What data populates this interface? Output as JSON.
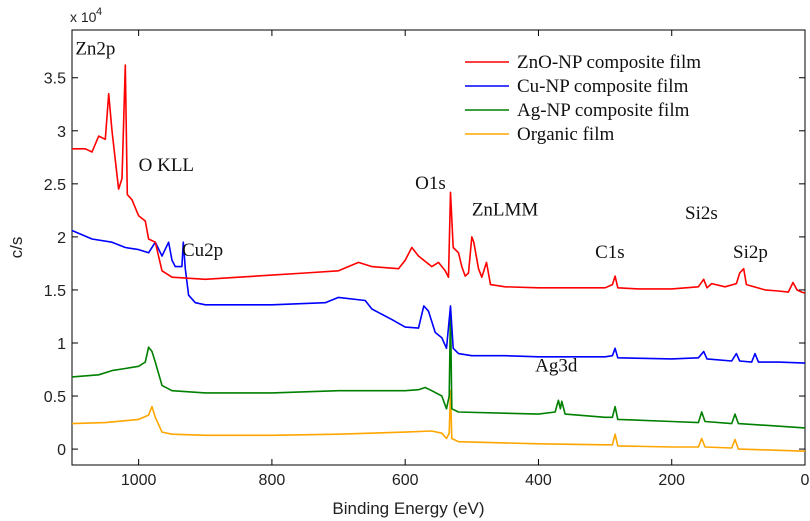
{
  "chart_data": {
    "type": "line",
    "title": "",
    "xlabel": "Binding Energy (eV)",
    "ylabel": "c/s",
    "y_scale_label": "x 10",
    "y_scale_exponent": "4",
    "xlim": [
      1100,
      0
    ],
    "ylim": [
      -0.15,
      3.95
    ],
    "x_reversed": true,
    "grid": false,
    "legend_position": "top-right",
    "x_ticks": [
      1000,
      800,
      600,
      400,
      200,
      0
    ],
    "y_ticks": [
      0,
      0.5,
      1,
      1.5,
      2,
      2.5,
      3,
      3.5
    ],
    "y_tick_labels": [
      "0",
      "0.5",
      "1",
      "1.5",
      "2",
      "2.5",
      "3",
      "3.5"
    ],
    "series": [
      {
        "name": "ZnO-NP composite film",
        "color": "#ff0000",
        "points": [
          [
            1100,
            2.83
          ],
          [
            1080,
            2.83
          ],
          [
            1070,
            2.8
          ],
          [
            1060,
            2.95
          ],
          [
            1050,
            2.92
          ],
          [
            1045,
            3.35
          ],
          [
            1040,
            3.0
          ],
          [
            1030,
            2.45
          ],
          [
            1025,
            2.55
          ],
          [
            1020,
            3.62
          ],
          [
            1017,
            2.4
          ],
          [
            1010,
            2.35
          ],
          [
            1000,
            2.2
          ],
          [
            990,
            2.15
          ],
          [
            985,
            1.98
          ],
          [
            975,
            1.95
          ],
          [
            965,
            1.68
          ],
          [
            950,
            1.62
          ],
          [
            900,
            1.6
          ],
          [
            850,
            1.62
          ],
          [
            800,
            1.64
          ],
          [
            750,
            1.66
          ],
          [
            700,
            1.68
          ],
          [
            670,
            1.76
          ],
          [
            650,
            1.72
          ],
          [
            610,
            1.7
          ],
          [
            600,
            1.78
          ],
          [
            590,
            1.9
          ],
          [
            580,
            1.82
          ],
          [
            560,
            1.72
          ],
          [
            550,
            1.76
          ],
          [
            540,
            1.68
          ],
          [
            535,
            1.62
          ],
          [
            532,
            2.42
          ],
          [
            528,
            1.9
          ],
          [
            520,
            1.85
          ],
          [
            515,
            1.72
          ],
          [
            510,
            1.63
          ],
          [
            505,
            1.66
          ],
          [
            500,
            2.0
          ],
          [
            497,
            1.95
          ],
          [
            490,
            1.7
          ],
          [
            485,
            1.62
          ],
          [
            478,
            1.76
          ],
          [
            472,
            1.55
          ],
          [
            450,
            1.53
          ],
          [
            400,
            1.52
          ],
          [
            350,
            1.52
          ],
          [
            300,
            1.52
          ],
          [
            289,
            1.55
          ],
          [
            285,
            1.63
          ],
          [
            281,
            1.52
          ],
          [
            250,
            1.51
          ],
          [
            200,
            1.51
          ],
          [
            160,
            1.53
          ],
          [
            152,
            1.6
          ],
          [
            147,
            1.52
          ],
          [
            140,
            1.56
          ],
          [
            120,
            1.53
          ],
          [
            103,
            1.56
          ],
          [
            98,
            1.66
          ],
          [
            92,
            1.7
          ],
          [
            88,
            1.55
          ],
          [
            60,
            1.5
          ],
          [
            40,
            1.49
          ],
          [
            25,
            1.48
          ],
          [
            18,
            1.57
          ],
          [
            12,
            1.5
          ],
          [
            5,
            1.48
          ],
          [
            0,
            1.47
          ]
        ]
      },
      {
        "name": "Cu-NP composite film",
        "color": "#0000ff",
        "points": [
          [
            1100,
            2.06
          ],
          [
            1070,
            1.98
          ],
          [
            1040,
            1.95
          ],
          [
            1020,
            1.9
          ],
          [
            1000,
            1.88
          ],
          [
            985,
            1.85
          ],
          [
            975,
            1.95
          ],
          [
            965,
            1.82
          ],
          [
            955,
            1.95
          ],
          [
            950,
            1.78
          ],
          [
            945,
            1.72
          ],
          [
            935,
            1.72
          ],
          [
            933,
            1.95
          ],
          [
            930,
            1.7
          ],
          [
            925,
            1.45
          ],
          [
            915,
            1.38
          ],
          [
            900,
            1.36
          ],
          [
            800,
            1.36
          ],
          [
            720,
            1.38
          ],
          [
            700,
            1.43
          ],
          [
            660,
            1.4
          ],
          [
            650,
            1.32
          ],
          [
            620,
            1.22
          ],
          [
            600,
            1.15
          ],
          [
            580,
            1.14
          ],
          [
            572,
            1.35
          ],
          [
            565,
            1.3
          ],
          [
            555,
            1.1
          ],
          [
            545,
            1.05
          ],
          [
            538,
            0.95
          ],
          [
            532,
            1.35
          ],
          [
            528,
            0.95
          ],
          [
            520,
            0.9
          ],
          [
            500,
            0.88
          ],
          [
            450,
            0.88
          ],
          [
            400,
            0.87
          ],
          [
            300,
            0.87
          ],
          [
            289,
            0.88
          ],
          [
            285,
            0.95
          ],
          [
            281,
            0.86
          ],
          [
            200,
            0.85
          ],
          [
            160,
            0.86
          ],
          [
            152,
            0.92
          ],
          [
            147,
            0.85
          ],
          [
            110,
            0.83
          ],
          [
            103,
            0.9
          ],
          [
            98,
            0.83
          ],
          [
            80,
            0.82
          ],
          [
            75,
            0.9
          ],
          [
            70,
            0.82
          ],
          [
            40,
            0.82
          ],
          [
            0,
            0.81
          ]
        ]
      },
      {
        "name": "Ag-NP composite film",
        "color": "#008000",
        "points": [
          [
            1100,
            0.68
          ],
          [
            1060,
            0.7
          ],
          [
            1040,
            0.74
          ],
          [
            1020,
            0.76
          ],
          [
            1000,
            0.78
          ],
          [
            990,
            0.82
          ],
          [
            985,
            0.96
          ],
          [
            980,
            0.92
          ],
          [
            975,
            0.82
          ],
          [
            965,
            0.6
          ],
          [
            950,
            0.55
          ],
          [
            900,
            0.53
          ],
          [
            800,
            0.53
          ],
          [
            700,
            0.55
          ],
          [
            600,
            0.55
          ],
          [
            580,
            0.56
          ],
          [
            570,
            0.58
          ],
          [
            560,
            0.55
          ],
          [
            545,
            0.5
          ],
          [
            538,
            0.38
          ],
          [
            534,
            0.5
          ],
          [
            532,
            1.32
          ],
          [
            530,
            0.38
          ],
          [
            520,
            0.35
          ],
          [
            400,
            0.33
          ],
          [
            375,
            0.35
          ],
          [
            370,
            0.46
          ],
          [
            367,
            0.38
          ],
          [
            365,
            0.45
          ],
          [
            360,
            0.33
          ],
          [
            300,
            0.3
          ],
          [
            289,
            0.3
          ],
          [
            285,
            0.4
          ],
          [
            281,
            0.28
          ],
          [
            200,
            0.26
          ],
          [
            160,
            0.25
          ],
          [
            155,
            0.35
          ],
          [
            150,
            0.26
          ],
          [
            110,
            0.24
          ],
          [
            105,
            0.33
          ],
          [
            100,
            0.24
          ],
          [
            50,
            0.22
          ],
          [
            0,
            0.2
          ]
        ]
      },
      {
        "name": "Organic film",
        "color": "#ffa500",
        "points": [
          [
            1100,
            0.24
          ],
          [
            1050,
            0.25
          ],
          [
            1000,
            0.28
          ],
          [
            985,
            0.32
          ],
          [
            980,
            0.4
          ],
          [
            975,
            0.3
          ],
          [
            965,
            0.16
          ],
          [
            950,
            0.14
          ],
          [
            900,
            0.13
          ],
          [
            800,
            0.13
          ],
          [
            700,
            0.14
          ],
          [
            600,
            0.16
          ],
          [
            560,
            0.17
          ],
          [
            545,
            0.15
          ],
          [
            538,
            0.1
          ],
          [
            534,
            0.15
          ],
          [
            532,
            0.55
          ],
          [
            530,
            0.1
          ],
          [
            520,
            0.07
          ],
          [
            400,
            0.05
          ],
          [
            300,
            0.04
          ],
          [
            289,
            0.04
          ],
          [
            285,
            0.14
          ],
          [
            281,
            0.03
          ],
          [
            200,
            0.02
          ],
          [
            160,
            0.02
          ],
          [
            155,
            0.1
          ],
          [
            150,
            0.02
          ],
          [
            110,
            0.01
          ],
          [
            105,
            0.09
          ],
          [
            100,
            0.0
          ],
          [
            50,
            -0.01
          ],
          [
            0,
            -0.02
          ]
        ]
      }
    ],
    "annotations": [
      {
        "text": "Zn2p",
        "x": 1095,
        "y": 3.72
      },
      {
        "text": "O KLL",
        "x": 1000,
        "y": 2.62
      },
      {
        "text": "O1s",
        "x": 585,
        "y": 2.45
      },
      {
        "text": "ZnLMM",
        "x": 500,
        "y": 2.2
      },
      {
        "text": "C1s",
        "x": 315,
        "y": 1.8
      },
      {
        "text": "Si2s",
        "x": 180,
        "y": 2.17
      },
      {
        "text": "Si2p",
        "x": 108,
        "y": 1.8
      },
      {
        "text": "Cu2p",
        "x": 935,
        "y": 1.82
      },
      {
        "text": "Ag3d",
        "x": 405,
        "y": 0.73
      }
    ]
  }
}
